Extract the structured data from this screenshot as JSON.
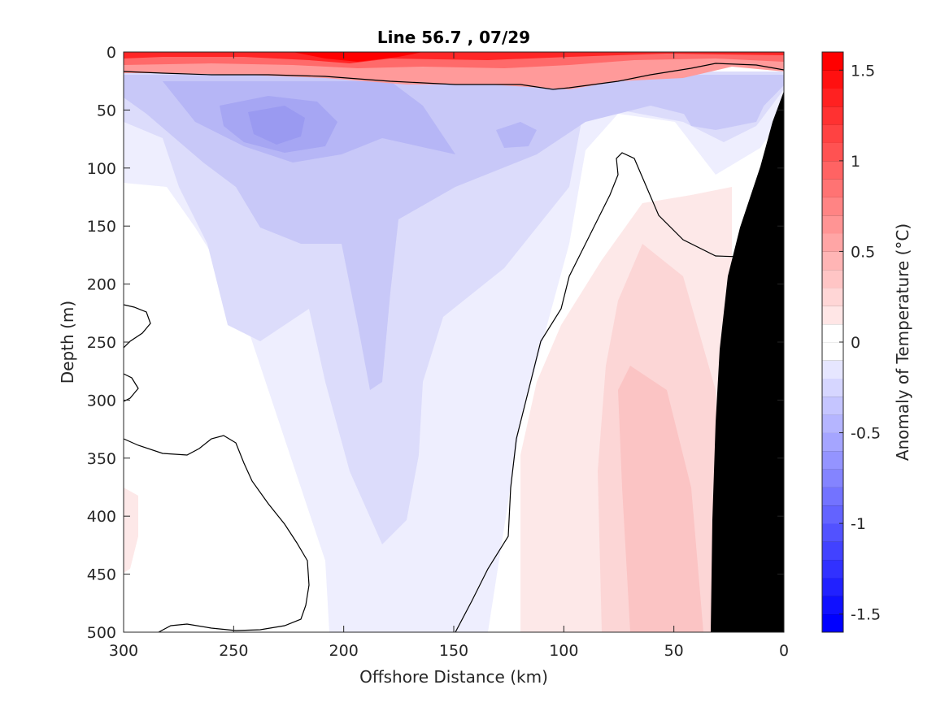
{
  "chart_data": {
    "type": "heatmap",
    "title": "Line 56.7 , 07/29",
    "xlabel": "Offshore Distance (km)",
    "ylabel": "Depth (m)",
    "xlim": [
      300,
      0
    ],
    "ylim": [
      0,
      500
    ],
    "x_ticks": [
      "300",
      "250",
      "200",
      "150",
      "100",
      "50",
      "0"
    ],
    "y_ticks": [
      "0",
      "50",
      "100",
      "150",
      "200",
      "250",
      "300",
      "350",
      "400",
      "450",
      "500"
    ],
    "colorbar": {
      "label": "Anomaly of Temperature (°C)",
      "range": [
        -1.6,
        1.6
      ],
      "step": 0.1,
      "ticks": [
        "1.5",
        "1",
        "0.5",
        "0",
        "-0.5",
        "-1",
        "-1.5"
      ],
      "negative_color": "#0000ff",
      "positive_color": "#ff0000",
      "neutral_color": "#ffffff"
    },
    "bathymetry_color": "#000000",
    "grid": false
  }
}
